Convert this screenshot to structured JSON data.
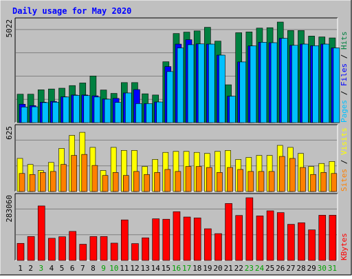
{
  "chart_data": {
    "type": "bar",
    "title": "Daily usage for May 2020",
    "categories": [
      "1",
      "2",
      "3",
      "4",
      "5",
      "6",
      "7",
      "8",
      "9",
      "10",
      "11",
      "12",
      "13",
      "14",
      "15",
      "16",
      "17",
      "18",
      "19",
      "20",
      "21",
      "22",
      "23",
      "24",
      "25",
      "26",
      "27",
      "28",
      "29",
      "30",
      "31"
    ],
    "weekend_days": [
      "3",
      "9",
      "10",
      "16",
      "17",
      "23",
      "24",
      "30",
      "31"
    ],
    "panels": [
      {
        "name": "hits-files-pages",
        "max_label": "5022",
        "ymax": 5022,
        "right_label": [
          {
            "text": "Pages",
            "color": "#00c0ff"
          },
          {
            "text": " / ",
            "color": "#000000"
          },
          {
            "text": "Files",
            "color": "#0000ff"
          },
          {
            "text": " / ",
            "color": "#000000"
          },
          {
            "text": "Hits",
            "color": "#008040"
          }
        ],
        "series": [
          {
            "name": "Hits",
            "color": "#008040",
            "values": [
              1420,
              1420,
              1640,
              1680,
              1720,
              1850,
              1980,
              2330,
              1630,
              1460,
              2000,
              2000,
              1440,
              1380,
              3040,
              4450,
              4520,
              4580,
              4760,
              4070,
              1890,
              4490,
              4530,
              4720,
              4740,
              5022,
              4600,
              4600,
              4320,
              4280,
              4230
            ]
          },
          {
            "name": "Files",
            "color": "#0000ff",
            "values": [
              920,
              850,
              1020,
              1060,
              1290,
              1380,
              1380,
              1340,
              1180,
              1210,
              1480,
              1650,
              950,
              1030,
              2800,
              3920,
              4140,
              3930,
              3920,
              3370,
              1320,
              3030,
              3830,
              4010,
              3990,
              4210,
              3860,
              3920,
              3840,
              3920,
              3730
            ]
          },
          {
            "name": "Pages",
            "color": "#00c0ff",
            "values": [
              780,
              790,
              1000,
              1020,
              1280,
              1360,
              1350,
              1280,
              1170,
              1010,
              1480,
              950,
              950,
              1030,
              2550,
              3730,
              3890,
              3930,
              3920,
              3370,
              1320,
              3030,
              3830,
              4010,
              3990,
              4210,
              3860,
              3920,
              3840,
              3920,
              3730
            ]
          }
        ]
      },
      {
        "name": "visits-sites",
        "max_label": "625",
        "ymax": 625,
        "right_label": [
          {
            "text": "Sites",
            "color": "#ff8000"
          },
          {
            "text": " / ",
            "color": "#000000"
          },
          {
            "text": "Visits",
            "color": "#ffff00"
          }
        ],
        "series": [
          {
            "name": "Visits",
            "color": "#ffff00",
            "values": [
              330,
              270,
              210,
              290,
              430,
              560,
              590,
              440,
              210,
              440,
              410,
              410,
              250,
              320,
              390,
              400,
              400,
              390,
              380,
              400,
              410,
              320,
              340,
              360,
              360,
              460,
              440,
              380,
              250,
              280,
              300
            ]
          },
          {
            "name": "Sites",
            "color": "#ff8000",
            "values": [
              180,
              170,
              190,
              200,
              270,
              360,
              370,
              260,
              160,
              190,
              160,
              200,
              170,
              190,
              220,
              200,
              250,
              250,
              240,
              190,
              240,
              220,
              200,
              200,
              200,
              350,
              330,
              240,
              170,
              190,
              180
            ]
          }
        ]
      },
      {
        "name": "kbytes",
        "max_label": "283060",
        "ymax": 283060,
        "right_label": [
          {
            "text": "KBytes",
            "color": "#ff0000"
          }
        ],
        "series": [
          {
            "name": "KBytes",
            "color": "#ff0000",
            "values": [
              77000,
              108000,
              246000,
              100000,
              107000,
              131000,
              73000,
              108000,
              108000,
              78000,
              183000,
              76000,
              102000,
              188000,
              186000,
              220000,
              196000,
              192000,
              143000,
              121000,
              257000,
              203000,
              283060,
              201000,
              224000,
              216000,
              163000,
              170000,
              138000,
              204000,
              0
            ]
          }
        ]
      }
    ],
    "kbytes_last": 204000
  },
  "colors": {
    "background": "#c0c0c0",
    "weekday_label": "#000000",
    "weekend_label": "#00a000",
    "title": "#0000ff"
  }
}
